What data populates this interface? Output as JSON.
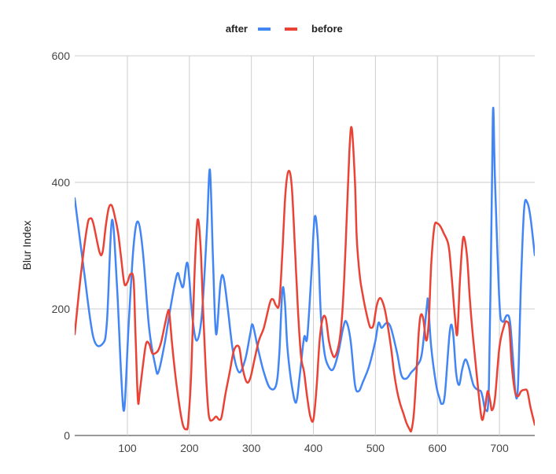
{
  "chart_data": {
    "type": "line",
    "title": "",
    "xlabel": "",
    "ylabel": "Blur Index",
    "xlim": [
      15,
      757
    ],
    "ylim": [
      0,
      600
    ],
    "x_ticks": [
      100,
      200,
      300,
      400,
      500,
      600,
      700
    ],
    "y_ticks": [
      0,
      200,
      400,
      600
    ],
    "grid": true,
    "smooth": true,
    "legend": {
      "position": "top"
    },
    "series": [
      {
        "name": "after",
        "color": "#4285f4",
        "points": [
          [
            15,
            375
          ],
          [
            30,
            260
          ],
          [
            45,
            155
          ],
          [
            60,
            145
          ],
          [
            67,
            180
          ],
          [
            75,
            340
          ],
          [
            83,
            240
          ],
          [
            90,
            95
          ],
          [
            95,
            42
          ],
          [
            102,
            175
          ],
          [
            110,
            300
          ],
          [
            117,
            338
          ],
          [
            125,
            290
          ],
          [
            135,
            170
          ],
          [
            145,
            110
          ],
          [
            150,
            100
          ],
          [
            160,
            145
          ],
          [
            170,
            205
          ],
          [
            180,
            255
          ],
          [
            185,
            245
          ],
          [
            190,
            235
          ],
          [
            197,
            272
          ],
          [
            205,
            185
          ],
          [
            212,
            150
          ],
          [
            220,
            190
          ],
          [
            228,
            320
          ],
          [
            233,
            420
          ],
          [
            238,
            280
          ],
          [
            243,
            160
          ],
          [
            250,
            240
          ],
          [
            255,
            250
          ],
          [
            262,
            200
          ],
          [
            270,
            135
          ],
          [
            280,
            100
          ],
          [
            290,
            120
          ],
          [
            298,
            160
          ],
          [
            302,
            175
          ],
          [
            310,
            140
          ],
          [
            320,
            100
          ],
          [
            330,
            75
          ],
          [
            340,
            80
          ],
          [
            345,
            130
          ],
          [
            350,
            230
          ],
          [
            354,
            210
          ],
          [
            358,
            140
          ],
          [
            365,
            80
          ],
          [
            372,
            52
          ],
          [
            378,
            95
          ],
          [
            385,
            155
          ],
          [
            390,
            155
          ],
          [
            397,
            260
          ],
          [
            402,
            345
          ],
          [
            407,
            310
          ],
          [
            412,
            190
          ],
          [
            418,
            130
          ],
          [
            425,
            108
          ],
          [
            432,
            105
          ],
          [
            440,
            130
          ],
          [
            448,
            170
          ],
          [
            453,
            180
          ],
          [
            460,
            150
          ],
          [
            467,
            80
          ],
          [
            473,
            70
          ],
          [
            480,
            85
          ],
          [
            490,
            110
          ],
          [
            500,
            150
          ],
          [
            505,
            178
          ],
          [
            510,
            170
          ],
          [
            518,
            178
          ],
          [
            525,
            170
          ],
          [
            535,
            130
          ],
          [
            542,
            95
          ],
          [
            550,
            90
          ],
          [
            558,
            100
          ],
          [
            567,
            110
          ],
          [
            575,
            130
          ],
          [
            583,
            205
          ],
          [
            585,
            210
          ],
          [
            590,
            140
          ],
          [
            598,
            80
          ],
          [
            603,
            60
          ],
          [
            607,
            50
          ],
          [
            612,
            65
          ],
          [
            620,
            165
          ],
          [
            625,
            165
          ],
          [
            630,
            100
          ],
          [
            635,
            80
          ],
          [
            640,
            105
          ],
          [
            645,
            120
          ],
          [
            650,
            110
          ],
          [
            658,
            80
          ],
          [
            665,
            72
          ],
          [
            670,
            70
          ],
          [
            673,
            60
          ],
          [
            678,
            40
          ],
          [
            683,
            80
          ],
          [
            688,
            400
          ],
          [
            690,
            518
          ],
          [
            693,
            400
          ],
          [
            700,
            210
          ],
          [
            705,
            180
          ],
          [
            712,
            190
          ],
          [
            717,
            180
          ],
          [
            722,
            120
          ],
          [
            726,
            65
          ],
          [
            730,
            80
          ],
          [
            735,
            250
          ],
          [
            740,
            360
          ],
          [
            745,
            368
          ],
          [
            750,
            345
          ],
          [
            757,
            285
          ]
        ]
      },
      {
        "name": "before",
        "color": "#ea4335",
        "points": [
          [
            15,
            160
          ],
          [
            25,
            255
          ],
          [
            35,
            330
          ],
          [
            40,
            343
          ],
          [
            45,
            335
          ],
          [
            55,
            290
          ],
          [
            60,
            290
          ],
          [
            65,
            330
          ],
          [
            70,
            360
          ],
          [
            75,
            363
          ],
          [
            80,
            345
          ],
          [
            85,
            320
          ],
          [
            90,
            280
          ],
          [
            95,
            240
          ],
          [
            100,
            242
          ],
          [
            105,
            255
          ],
          [
            110,
            245
          ],
          [
            113,
            160
          ],
          [
            117,
            55
          ],
          [
            120,
            70
          ],
          [
            125,
            110
          ],
          [
            130,
            145
          ],
          [
            135,
            145
          ],
          [
            140,
            130
          ],
          [
            145,
            130
          ],
          [
            150,
            135
          ],
          [
            155,
            150
          ],
          [
            165,
            195
          ],
          [
            168,
            190
          ],
          [
            172,
            145
          ],
          [
            178,
            90
          ],
          [
            185,
            40
          ],
          [
            190,
            15
          ],
          [
            195,
            10
          ],
          [
            198,
            20
          ],
          [
            203,
            100
          ],
          [
            208,
            250
          ],
          [
            213,
            340
          ],
          [
            218,
            300
          ],
          [
            222,
            200
          ],
          [
            226,
            110
          ],
          [
            230,
            45
          ],
          [
            233,
            25
          ],
          [
            238,
            25
          ],
          [
            243,
            30
          ],
          [
            248,
            25
          ],
          [
            252,
            30
          ],
          [
            258,
            65
          ],
          [
            265,
            100
          ],
          [
            272,
            135
          ],
          [
            280,
            140
          ],
          [
            285,
            110
          ],
          [
            292,
            85
          ],
          [
            298,
            90
          ],
          [
            305,
            120
          ],
          [
            312,
            150
          ],
          [
            320,
            170
          ],
          [
            330,
            210
          ],
          [
            335,
            215
          ],
          [
            340,
            205
          ],
          [
            345,
            210
          ],
          [
            350,
            290
          ],
          [
            355,
            385
          ],
          [
            360,
            418
          ],
          [
            365,
            395
          ],
          [
            370,
            300
          ],
          [
            375,
            200
          ],
          [
            380,
            125
          ],
          [
            385,
            100
          ],
          [
            390,
            60
          ],
          [
            395,
            30
          ],
          [
            400,
            25
          ],
          [
            405,
            75
          ],
          [
            410,
            150
          ],
          [
            415,
            185
          ],
          [
            420,
            185
          ],
          [
            425,
            150
          ],
          [
            430,
            130
          ],
          [
            435,
            125
          ],
          [
            442,
            150
          ],
          [
            447,
            200
          ],
          [
            452,
            300
          ],
          [
            458,
            450
          ],
          [
            462,
            485
          ],
          [
            467,
            400
          ],
          [
            470,
            310
          ],
          [
            475,
            250
          ],
          [
            480,
            220
          ],
          [
            485,
            195
          ],
          [
            490,
            175
          ],
          [
            493,
            170
          ],
          [
            497,
            175
          ],
          [
            502,
            205
          ],
          [
            507,
            217
          ],
          [
            512,
            210
          ],
          [
            517,
            190
          ],
          [
            525,
            140
          ],
          [
            530,
            100
          ],
          [
            535,
            70
          ],
          [
            540,
            50
          ],
          [
            545,
            35
          ],
          [
            550,
            20
          ],
          [
            555,
            10
          ],
          [
            558,
            8
          ],
          [
            562,
            35
          ],
          [
            566,
            95
          ],
          [
            570,
            165
          ],
          [
            573,
            190
          ],
          [
            577,
            185
          ],
          [
            582,
            150
          ],
          [
            586,
            180
          ],
          [
            590,
            270
          ],
          [
            595,
            330
          ],
          [
            600,
            335
          ],
          [
            605,
            330
          ],
          [
            610,
            320
          ],
          [
            618,
            300
          ],
          [
            623,
            250
          ],
          [
            628,
            190
          ],
          [
            632,
            160
          ],
          [
            636,
            240
          ],
          [
            640,
            300
          ],
          [
            643,
            313
          ],
          [
            648,
            280
          ],
          [
            652,
            220
          ],
          [
            656,
            170
          ],
          [
            660,
            130
          ],
          [
            665,
            80
          ],
          [
            670,
            35
          ],
          [
            673,
            25
          ],
          [
            677,
            45
          ],
          [
            681,
            70
          ],
          [
            685,
            55
          ],
          [
            688,
            40
          ],
          [
            693,
            60
          ],
          [
            700,
            140
          ],
          [
            708,
            175
          ],
          [
            712,
            180
          ],
          [
            716,
            170
          ],
          [
            720,
            110
          ],
          [
            725,
            70
          ],
          [
            730,
            62
          ],
          [
            735,
            70
          ],
          [
            740,
            72
          ],
          [
            745,
            70
          ],
          [
            750,
            45
          ],
          [
            757,
            17
          ]
        ]
      }
    ]
  }
}
